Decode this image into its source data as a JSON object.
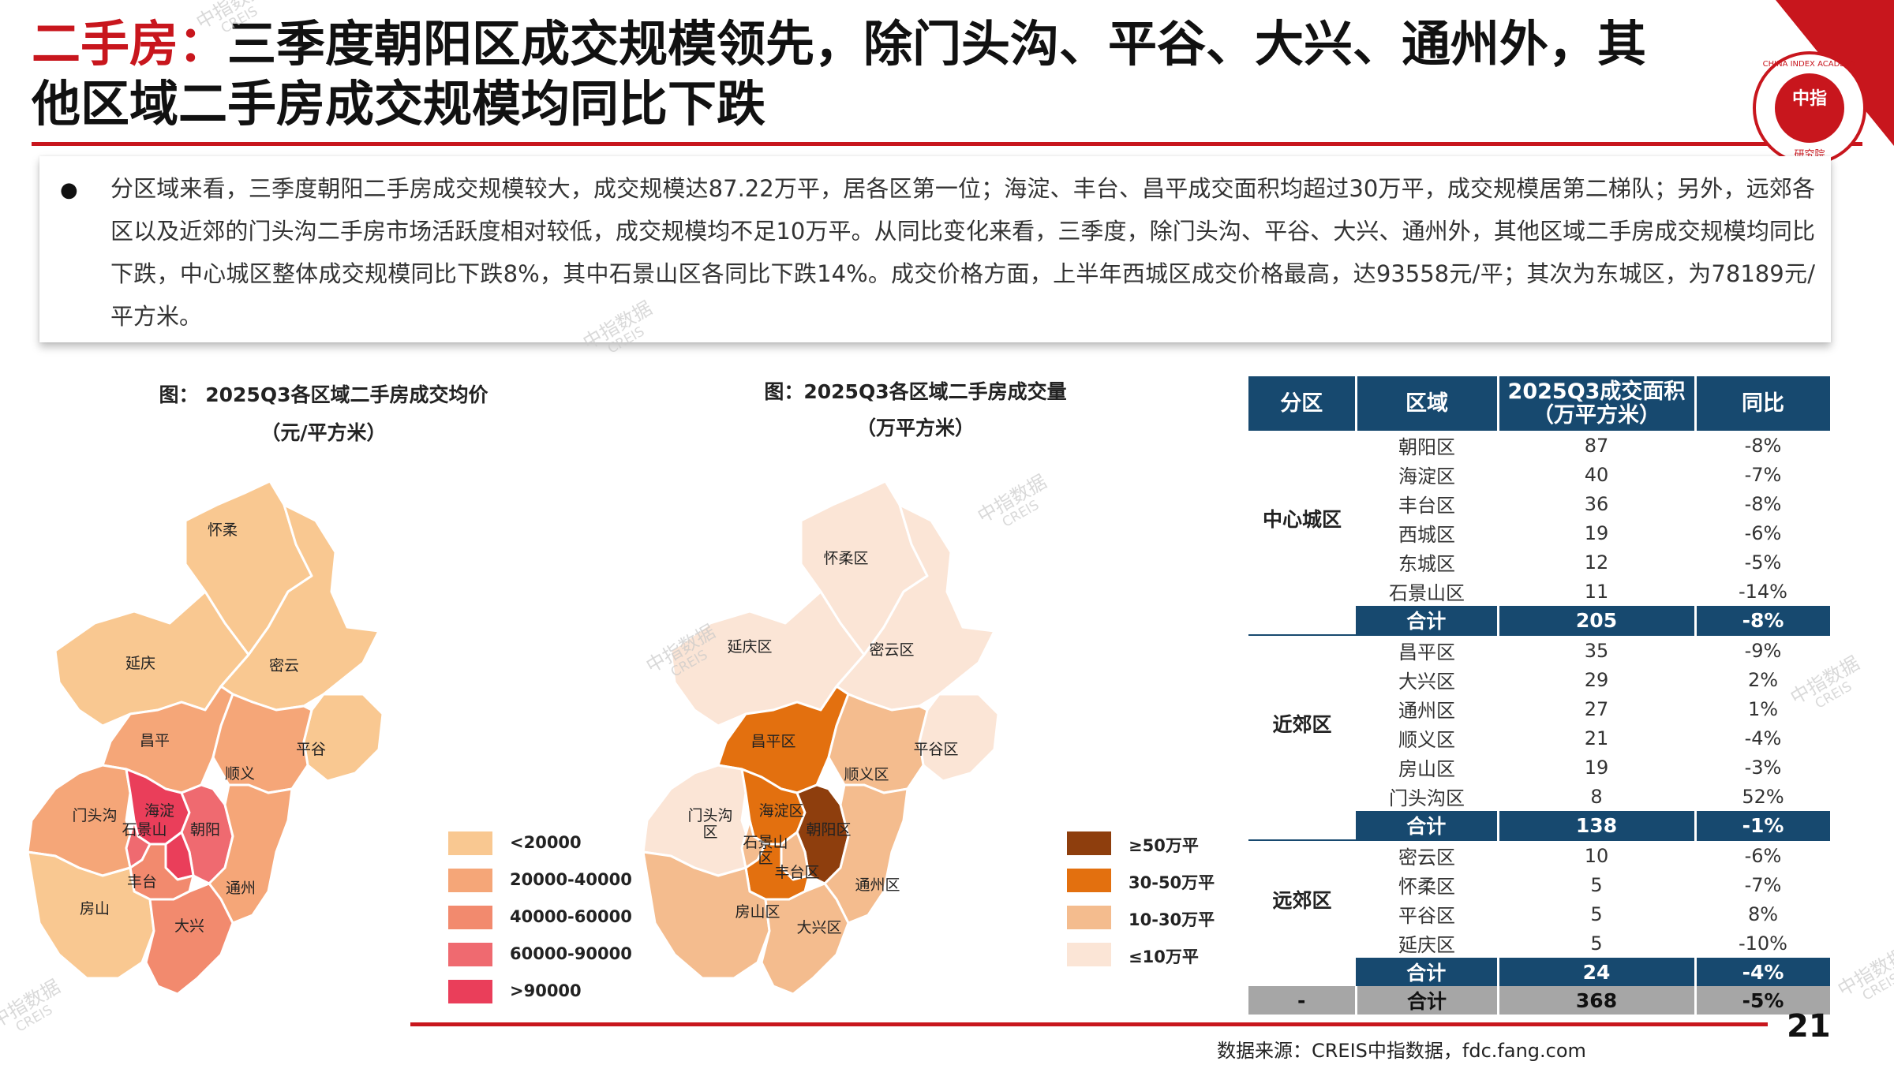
{
  "header": {
    "title_highlight": "二手房：",
    "title_rest": "三季度朝阳区成交规模领先，除门头沟、平谷、大兴、通州外，其他区域二手房成交规模均同比下跌"
  },
  "logo": {
    "name": "CHINA INDEX ACADEMY",
    "center": "中指",
    "sub": "研究院"
  },
  "summary": {
    "bullet": "●",
    "text": "分区域来看，三季度朝阳二手房成交规模较大，成交规模达87.22万平，居各区第一位；海淀、丰台、昌平成交面积均超过30万平，成交规模居第二梯队；另外，远郊各区以及近郊的门头沟二手房市场活跃度相对较低，成交规模均不足10万平。从同比变化来看，三季度，除门头沟、平谷、大兴、通州外，其他区域二手房成交规模均同比下跌，中心城区整体成交规模同比下跌8%，其中石景山区各同比下跌14%。成交价格方面，上半年西城区成交价格最高，达93558元/平；其次为东城区，为78189元/平方米。"
  },
  "map_price": {
    "title_line1": "图：  2025Q3各区域二手房成交均价",
    "title_line2": "（元/平方米）",
    "labels": {
      "huairou": "怀柔",
      "yanqing": "延庆",
      "miyun": "密云",
      "changping": "昌平",
      "shunyi": "顺义",
      "pinggu": "平谷",
      "mentougou": "门头沟",
      "haidian": "海淀",
      "shijingshan": "石景山",
      "chaoyang": "朝阳",
      "fengtai": "丰台",
      "tongzhou": "通州",
      "fangshan": "房山",
      "daxing": "大兴"
    },
    "legend": [
      {
        "label": "<20000",
        "color": "#f9c891"
      },
      {
        "label": "20000-40000",
        "color": "#f5a678"
      },
      {
        "label": "40000-60000",
        "color": "#f28a6e"
      },
      {
        "label": "60000-90000",
        "color": "#ef6a70"
      },
      {
        "label": ">90000",
        "color": "#ea3e5a"
      }
    ]
  },
  "map_volume": {
    "title_line1": "图：2025Q3各区域二手房成交量",
    "title_line2": "（万平方米）",
    "labels": {
      "huairou": "怀柔区",
      "yanqing": "延庆区",
      "miyun": "密云区",
      "changping": "昌平区",
      "shunyi": "顺义区",
      "pinggu": "平谷区",
      "mentougou_1": "门头沟",
      "mentougou_2": "区",
      "haidian": "海淀区",
      "shijingshan_1": "石景山",
      "shijingshan_2": "区",
      "chaoyang": "朝阳区",
      "fengtai": "丰台区",
      "tongzhou": "通州区",
      "fangshan": "房山区",
      "daxing": "大兴区"
    },
    "legend": [
      {
        "label": "≥50万平",
        "color": "#8e3e0d"
      },
      {
        "label": "30-50万平",
        "color": "#e3700f"
      },
      {
        "label": "10-30万平",
        "color": "#f4bc8e"
      },
      {
        "label": "≤10万平",
        "color": "#fbe5d6"
      }
    ]
  },
  "table": {
    "headers": [
      "分区",
      "区域",
      "2025Q3成交面积（万平方米）",
      "同比"
    ],
    "header_area_line1": "2025Q3成交面积",
    "header_area_line2": "（万平方米）",
    "groups": [
      {
        "name": "中心城区",
        "rows": [
          {
            "district": "朝阳区",
            "area": "87",
            "yoy": "-8%"
          },
          {
            "district": "海淀区",
            "area": "40",
            "yoy": "-7%"
          },
          {
            "district": "丰台区",
            "area": "36",
            "yoy": "-8%"
          },
          {
            "district": "西城区",
            "area": "19",
            "yoy": "-6%"
          },
          {
            "district": "东城区",
            "area": "12",
            "yoy": "-5%"
          },
          {
            "district": "石景山区",
            "area": "11",
            "yoy": "-14%"
          }
        ],
        "subtotal": {
          "label": "合计",
          "area": "205",
          "yoy": "-8%"
        }
      },
      {
        "name": "近郊区",
        "rows": [
          {
            "district": "昌平区",
            "area": "35",
            "yoy": "-9%"
          },
          {
            "district": "大兴区",
            "area": "29",
            "yoy": "2%"
          },
          {
            "district": "通州区",
            "area": "27",
            "yoy": "1%"
          },
          {
            "district": "顺义区",
            "area": "21",
            "yoy": "-4%"
          },
          {
            "district": "房山区",
            "area": "19",
            "yoy": "-3%"
          },
          {
            "district": "门头沟区",
            "area": "8",
            "yoy": "52%"
          }
        ],
        "subtotal": {
          "label": "合计",
          "area": "138",
          "yoy": "-1%"
        }
      },
      {
        "name": "远郊区",
        "rows": [
          {
            "district": "密云区",
            "area": "10",
            "yoy": "-6%"
          },
          {
            "district": "怀柔区",
            "area": "5",
            "yoy": "-7%"
          },
          {
            "district": "平谷区",
            "area": "5",
            "yoy": "8%"
          },
          {
            "district": "延庆区",
            "area": "5",
            "yoy": "-10%"
          }
        ],
        "subtotal": {
          "label": "合计",
          "area": "24",
          "yoy": "-4%"
        }
      }
    ],
    "total": {
      "group": "-",
      "label": "合计",
      "area": "368",
      "yoy": "-5%"
    }
  },
  "footer": {
    "source": "数据来源：CREIS中指数据，fdc.fang.com",
    "page": "21"
  },
  "watermark": {
    "line1": "中指数据",
    "line2": "CREIS"
  },
  "colors": {
    "brand_red": "#c8161d",
    "table_header": "#17496f",
    "total_row": "#a6a6a6"
  }
}
